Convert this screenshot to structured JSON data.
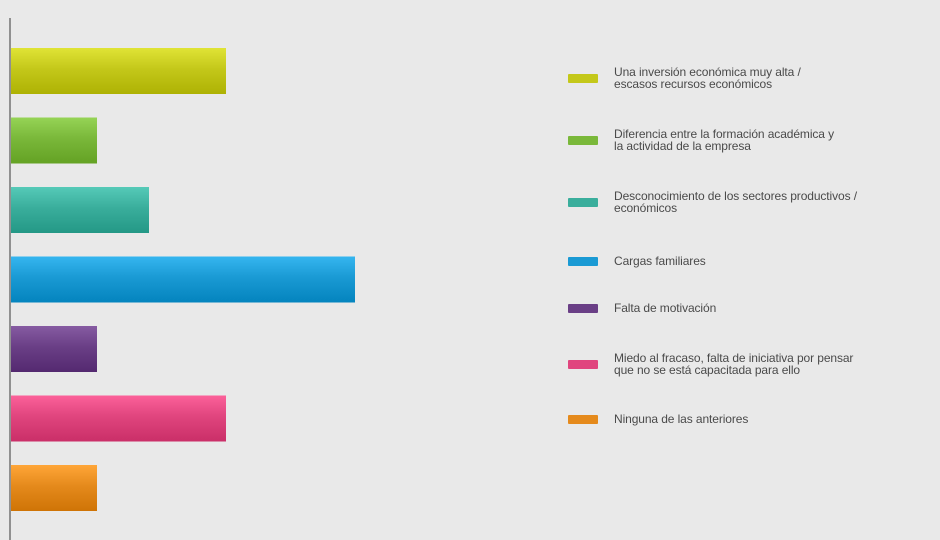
{
  "chart_data": {
    "type": "bar",
    "orientation": "horizontal",
    "grid": false,
    "legend_position": "right",
    "categories": [
      "Una inversión económica muy alta / escasos recursos económicos",
      "Diferencia entre la formación académica y la actividad de la empresa",
      "Desconocimiento de los sectores productivos / económicos",
      "Cargas familiares",
      "Falta de motivación",
      "Miedo al fracaso, falta de iniciativa por pensar que no se está capacitada para ello",
      "Ninguna de las anteriores"
    ],
    "values": [
      5,
      2,
      3.2,
      8,
      2,
      5,
      2
    ],
    "xlim": [
      0,
      8
    ],
    "colors": [
      "#c4c81a",
      "#7ab83a",
      "#3aae9c",
      "#1a9ad4",
      "#6a3f86",
      "#e0457e",
      "#e58a1c"
    ]
  },
  "legend": {
    "items": [
      "Una inversión económica muy alta /\nescasos recursos económicos",
      "Diferencia entre la formación académica y\nla actividad de la empresa",
      "Desconocimiento de los sectores productivos /\neconómicos",
      "Cargas familiares",
      "Falta de motivación",
      "Miedo al fracaso, falta de iniciativa por pensar\nque no se está capacitada para ello",
      "Ninguna de las anteriores"
    ]
  }
}
